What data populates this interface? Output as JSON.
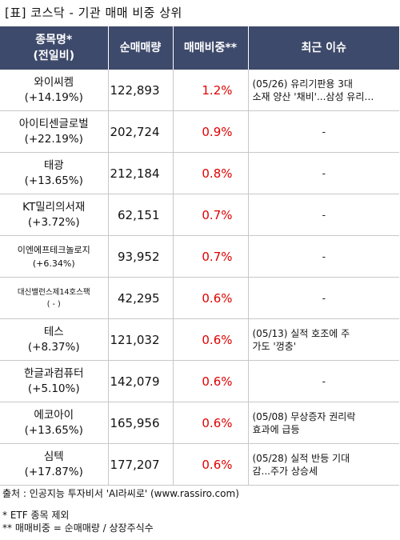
{
  "title": "[표] 코스닥 - 기관 매매 비중 상위",
  "headers": {
    "name": "종목명*",
    "name_sub": "(전일비)",
    "volume": "순매매량",
    "ratio": "매매비중**",
    "issue": "최근 이슈"
  },
  "rows": [
    {
      "name": "와이씨켐",
      "change": "(+14.19%)",
      "volume": "122,893",
      "ratio": "1.2%",
      "issue1": "(05/26) 유리기판용 3대",
      "issue2": "소재 양산 '채비'...삼성 유리…"
    },
    {
      "name": "아이티센글로벌",
      "change": "(+22.19%)",
      "volume": "202,724",
      "ratio": "0.9%",
      "issue1": "-",
      "issue2": ""
    },
    {
      "name": "태광",
      "change": "(+13.65%)",
      "volume": "212,184",
      "ratio": "0.8%",
      "issue1": "-",
      "issue2": ""
    },
    {
      "name": "KT밀리의서재",
      "change": "(+3.72%)",
      "volume": "62,151",
      "ratio": "0.7%",
      "issue1": "-",
      "issue2": ""
    },
    {
      "name": "이엔에프테크놀로지",
      "change": "(+6.34%)",
      "volume": "93,952",
      "ratio": "0.7%",
      "issue1": "-",
      "issue2": ""
    },
    {
      "name": "대신밸런스제14호스팩",
      "change": "( - )",
      "volume": "42,295",
      "ratio": "0.6%",
      "issue1": "-",
      "issue2": ""
    },
    {
      "name": "테스",
      "change": "(+8.37%)",
      "volume": "121,032",
      "ratio": "0.6%",
      "issue1": "(05/13) 실적 호조에 주",
      "issue2": "가도 '껑충'"
    },
    {
      "name": "한글과컴퓨터",
      "change": "(+5.10%)",
      "volume": "142,079",
      "ratio": "0.6%",
      "issue1": "-",
      "issue2": ""
    },
    {
      "name": "에코아이",
      "change": "(+13.65%)",
      "volume": "165,956",
      "ratio": "0.6%",
      "issue1": "(05/08) 무상증자 권리락",
      "issue2": "효과에 급등"
    },
    {
      "name": "심텍",
      "change": "(+17.87%)",
      "volume": "177,207",
      "ratio": "0.6%",
      "issue1": "(05/28) 실적 반등 기대",
      "issue2": "감...주가 상승세"
    }
  ],
  "footer": {
    "source": "출처 : 인공지능 투자비서 'AI라씨로' (www.rassiro.com)",
    "note1": "* ETF 종목 제외",
    "note2": "** 매매비중 = 순매매량 / 상장주식수"
  }
}
